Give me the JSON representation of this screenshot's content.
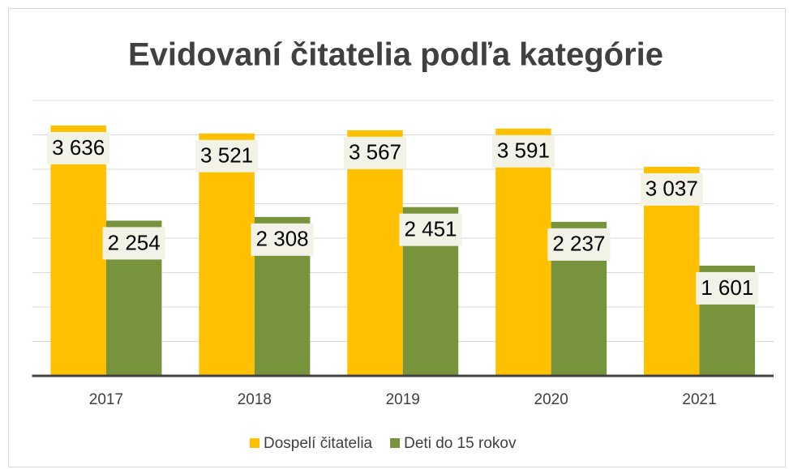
{
  "chart_data": {
    "type": "bar",
    "title": "Evidovaní čitatelia podľa kategórie",
    "categories": [
      "2017",
      "2018",
      "2019",
      "2020",
      "2021"
    ],
    "series": [
      {
        "name": "Dospelí čitatelia",
        "color": "#ffc000",
        "values": [
          3636,
          3521,
          3567,
          3591,
          3037
        ],
        "value_labels": [
          "3 636",
          "3 521",
          "3 567",
          "3 591",
          "3 037"
        ]
      },
      {
        "name": "Deti do 15 rokov",
        "color": "#77933c",
        "values": [
          2254,
          2308,
          2451,
          2237,
          1601
        ],
        "value_labels": [
          "2 254",
          "2 308",
          "2 451",
          "2 237",
          "1 601"
        ]
      }
    ],
    "ylim": [
      0,
      4000
    ],
    "yticks": [
      0,
      500,
      1000,
      1500,
      2000,
      2500,
      3000,
      3500,
      4000
    ],
    "grid": true,
    "legend": "bottom"
  }
}
